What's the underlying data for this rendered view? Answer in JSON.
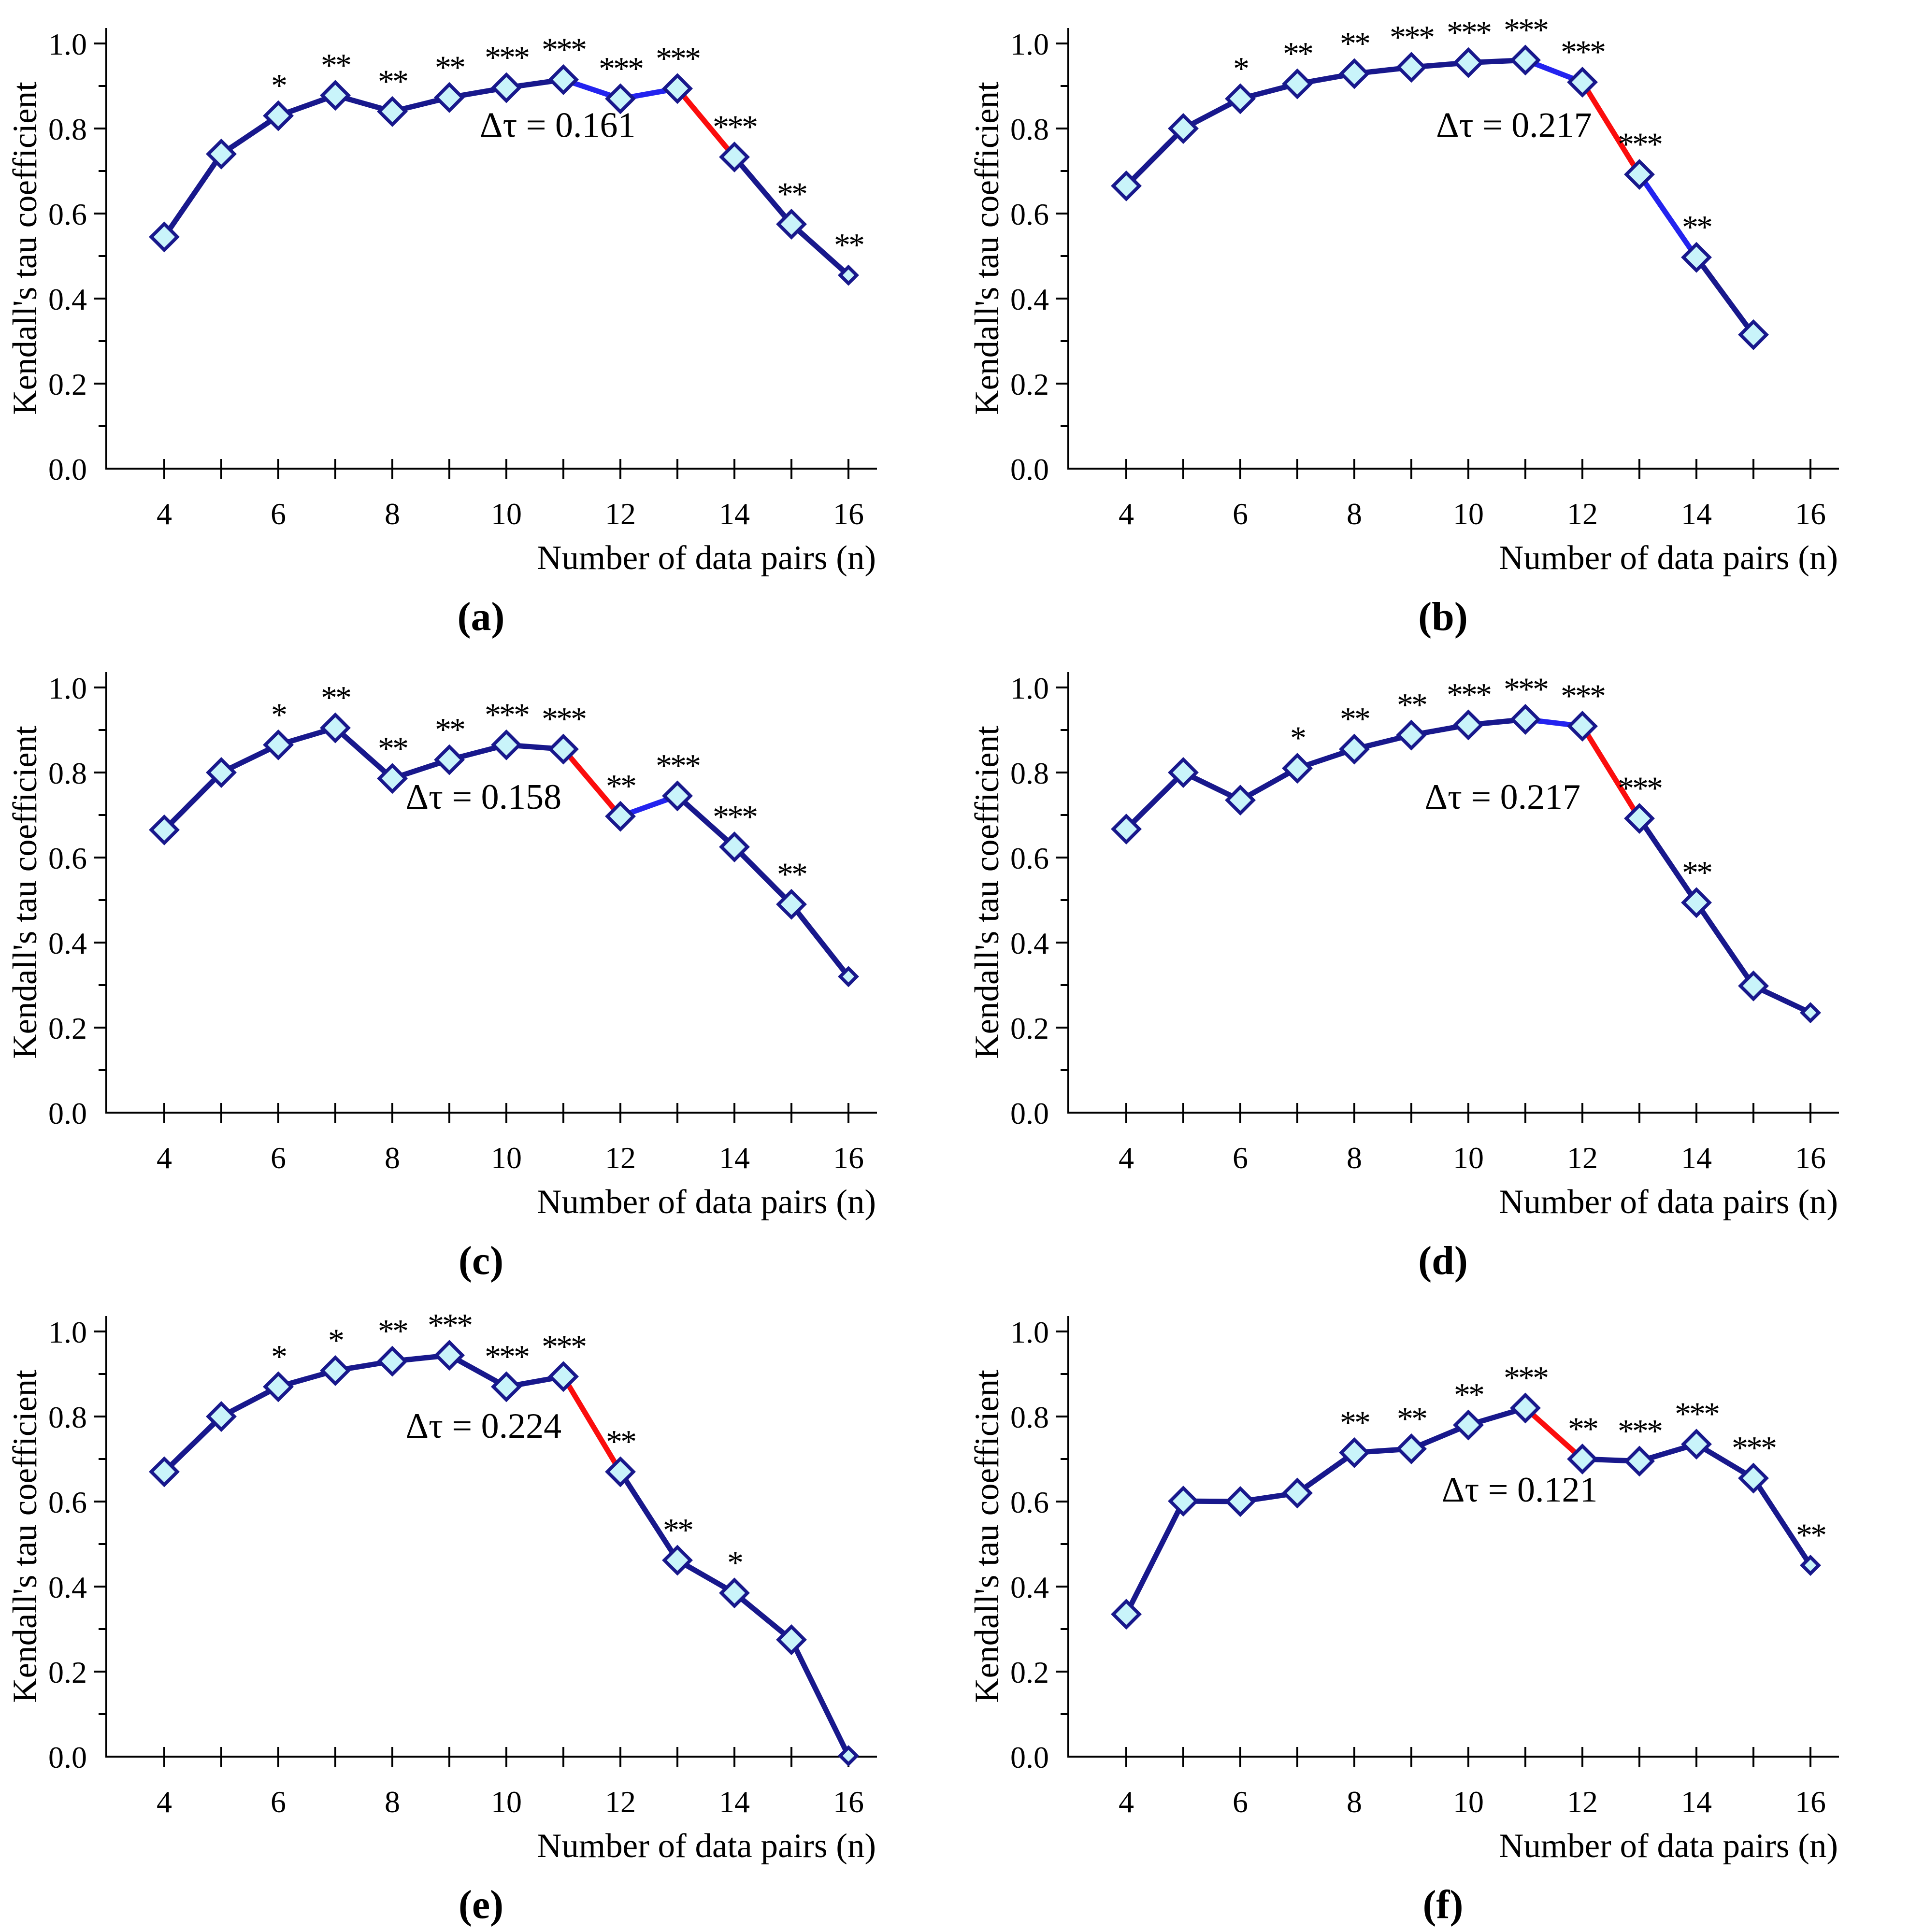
{
  "figure": {
    "background": "#FFFFFF",
    "y_axis_label": "Kendall's tau coefficient",
    "x_axis_label": "Number of data pairs (n)",
    "y_ticks": [
      "0.0",
      "0.2",
      "0.4",
      "0.6",
      "0.8",
      "1.0"
    ],
    "x_tick_labels": [
      4,
      6,
      8,
      10,
      12,
      14,
      16
    ],
    "colors": {
      "navy": "#18188C",
      "highlight_blue": "#2323EF",
      "red": "#FB0D0D",
      "marker_fill": "#C9F4FA",
      "axis": "#000000",
      "text": "#000000"
    }
  },
  "chart_data": [
    {
      "panel": "a",
      "caption": "(a)",
      "type": "line",
      "title": "",
      "xlabel": "Number of data pairs (n)",
      "ylabel": "Kendall's tau coefficient",
      "xlim": [
        3,
        16.6
      ],
      "ylim": [
        0.0,
        1.0
      ],
      "x": [
        4,
        5,
        6,
        7,
        8,
        9,
        10,
        11,
        12,
        13,
        14,
        15,
        16
      ],
      "y": [
        0.545,
        0.74,
        0.83,
        0.878,
        0.84,
        0.873,
        0.896,
        0.915,
        0.87,
        0.894,
        0.733,
        0.575,
        0.455
      ],
      "significance": [
        "",
        "",
        "*",
        "**",
        "**",
        "**",
        "***",
        "***",
        "***",
        "***",
        "***",
        "**",
        "**"
      ],
      "red_segments": [
        [
          13,
          14
        ]
      ],
      "blue_segments": [
        [
          11,
          12
        ],
        [
          12,
          13
        ]
      ],
      "delta_tau_label": "Δτ = 0.161",
      "annotation_pos": {
        "x": 10.9,
        "y": 0.78
      },
      "small_markers": [
        16
      ]
    },
    {
      "panel": "b",
      "caption": "(b)",
      "type": "line",
      "title": "",
      "xlabel": "Number of data pairs (n)",
      "ylabel": "Kendall's tau coefficient",
      "xlim": [
        3,
        16.6
      ],
      "ylim": [
        0.0,
        1.0
      ],
      "x": [
        4,
        5,
        6,
        7,
        8,
        9,
        10,
        11,
        12,
        13,
        14,
        15
      ],
      "y": [
        0.665,
        0.8,
        0.87,
        0.905,
        0.929,
        0.944,
        0.955,
        0.961,
        0.909,
        0.692,
        0.497,
        0.315
      ],
      "significance": [
        "",
        "",
        "*",
        "**",
        "**",
        "***",
        "***",
        "***",
        "***",
        "***",
        "**",
        ""
      ],
      "red_segments": [
        [
          12,
          13
        ]
      ],
      "blue_segments": [
        [
          11,
          12
        ],
        [
          13,
          14
        ]
      ],
      "delta_tau_label": "Δτ = 0.217",
      "annotation_pos": {
        "x": 10.8,
        "y": 0.78
      },
      "small_markers": []
    },
    {
      "panel": "c",
      "caption": "(c)",
      "type": "line",
      "title": "",
      "xlabel": "Number of data pairs (n)",
      "ylabel": "Kendall's tau coefficient",
      "xlim": [
        3,
        16.6
      ],
      "ylim": [
        0.0,
        1.0
      ],
      "x": [
        4,
        5,
        6,
        7,
        8,
        9,
        10,
        11,
        12,
        13,
        14,
        15,
        16
      ],
      "y": [
        0.665,
        0.8,
        0.865,
        0.905,
        0.786,
        0.83,
        0.865,
        0.855,
        0.697,
        0.745,
        0.625,
        0.49,
        0.32
      ],
      "significance": [
        "",
        "",
        "*",
        "**",
        "**",
        "**",
        "***",
        "***",
        "**",
        "***",
        "***",
        "**",
        ""
      ],
      "red_segments": [
        [
          11,
          12
        ]
      ],
      "blue_segments": [
        [
          12,
          13
        ]
      ],
      "delta_tau_label": "Δτ = 0.158",
      "annotation_pos": {
        "x": 9.6,
        "y": 0.715
      },
      "small_markers": [
        16
      ]
    },
    {
      "panel": "d",
      "caption": "(d)",
      "type": "line",
      "title": "",
      "xlabel": "Number of data pairs (n)",
      "ylabel": "Kendall's tau coefficient",
      "xlim": [
        3,
        16.6
      ],
      "ylim": [
        0.0,
        1.0
      ],
      "x": [
        4,
        5,
        6,
        7,
        8,
        9,
        10,
        11,
        12,
        13,
        14,
        15,
        16
      ],
      "y": [
        0.667,
        0.8,
        0.735,
        0.81,
        0.855,
        0.888,
        0.912,
        0.925,
        0.909,
        0.692,
        0.494,
        0.298,
        0.235
      ],
      "significance": [
        "",
        "",
        "",
        "*",
        "**",
        "**",
        "***",
        "***",
        "***",
        "***",
        "**",
        "",
        ""
      ],
      "red_segments": [
        [
          12,
          13
        ]
      ],
      "blue_segments": [
        [
          11,
          12
        ]
      ],
      "delta_tau_label": "Δτ = 0.217",
      "annotation_pos": {
        "x": 10.6,
        "y": 0.715
      },
      "small_markers": [
        16
      ]
    },
    {
      "panel": "e",
      "caption": "(e)",
      "type": "line",
      "title": "",
      "xlabel": "Number of data pairs (n)",
      "ylabel": "Kendall's tau coefficient",
      "xlim": [
        3,
        16.6
      ],
      "ylim": [
        0.0,
        1.0
      ],
      "x": [
        4,
        5,
        6,
        7,
        8,
        9,
        10,
        11,
        12,
        13,
        14,
        15,
        16
      ],
      "y": [
        0.67,
        0.8,
        0.87,
        0.908,
        0.93,
        0.944,
        0.87,
        0.894,
        0.67,
        0.462,
        0.385,
        0.275,
        0.002
      ],
      "significance": [
        "",
        "",
        "*",
        "*",
        "**",
        "***",
        "***",
        "***",
        "**",
        "**",
        "*",
        "",
        ""
      ],
      "red_segments": [
        [
          11,
          12
        ]
      ],
      "blue_segments": [],
      "delta_tau_label": "Δτ = 0.224",
      "annotation_pos": {
        "x": 9.6,
        "y": 0.75
      },
      "small_markers": [
        16
      ]
    },
    {
      "panel": "f",
      "caption": "(f)",
      "type": "line",
      "title": "",
      "xlabel": "Number of data pairs (n)",
      "ylabel": "Kendall's tau coefficient",
      "xlim": [
        3,
        16.6
      ],
      "ylim": [
        0.0,
        1.0
      ],
      "x": [
        4,
        5,
        6,
        7,
        8,
        9,
        10,
        11,
        12,
        13,
        14,
        15,
        16
      ],
      "y": [
        0.335,
        0.601,
        0.6,
        0.62,
        0.715,
        0.724,
        0.78,
        0.82,
        0.7,
        0.695,
        0.735,
        0.655,
        0.45
      ],
      "significance": [
        "",
        "",
        "",
        "",
        "**",
        "**",
        "**",
        "***",
        "**",
        "***",
        "***",
        "***",
        "**"
      ],
      "red_segments": [
        [
          11,
          12
        ]
      ],
      "blue_segments": [],
      "delta_tau_label": "Δτ = 0.121",
      "annotation_pos": {
        "x": 10.9,
        "y": 0.6
      },
      "small_markers": [
        16
      ]
    }
  ]
}
